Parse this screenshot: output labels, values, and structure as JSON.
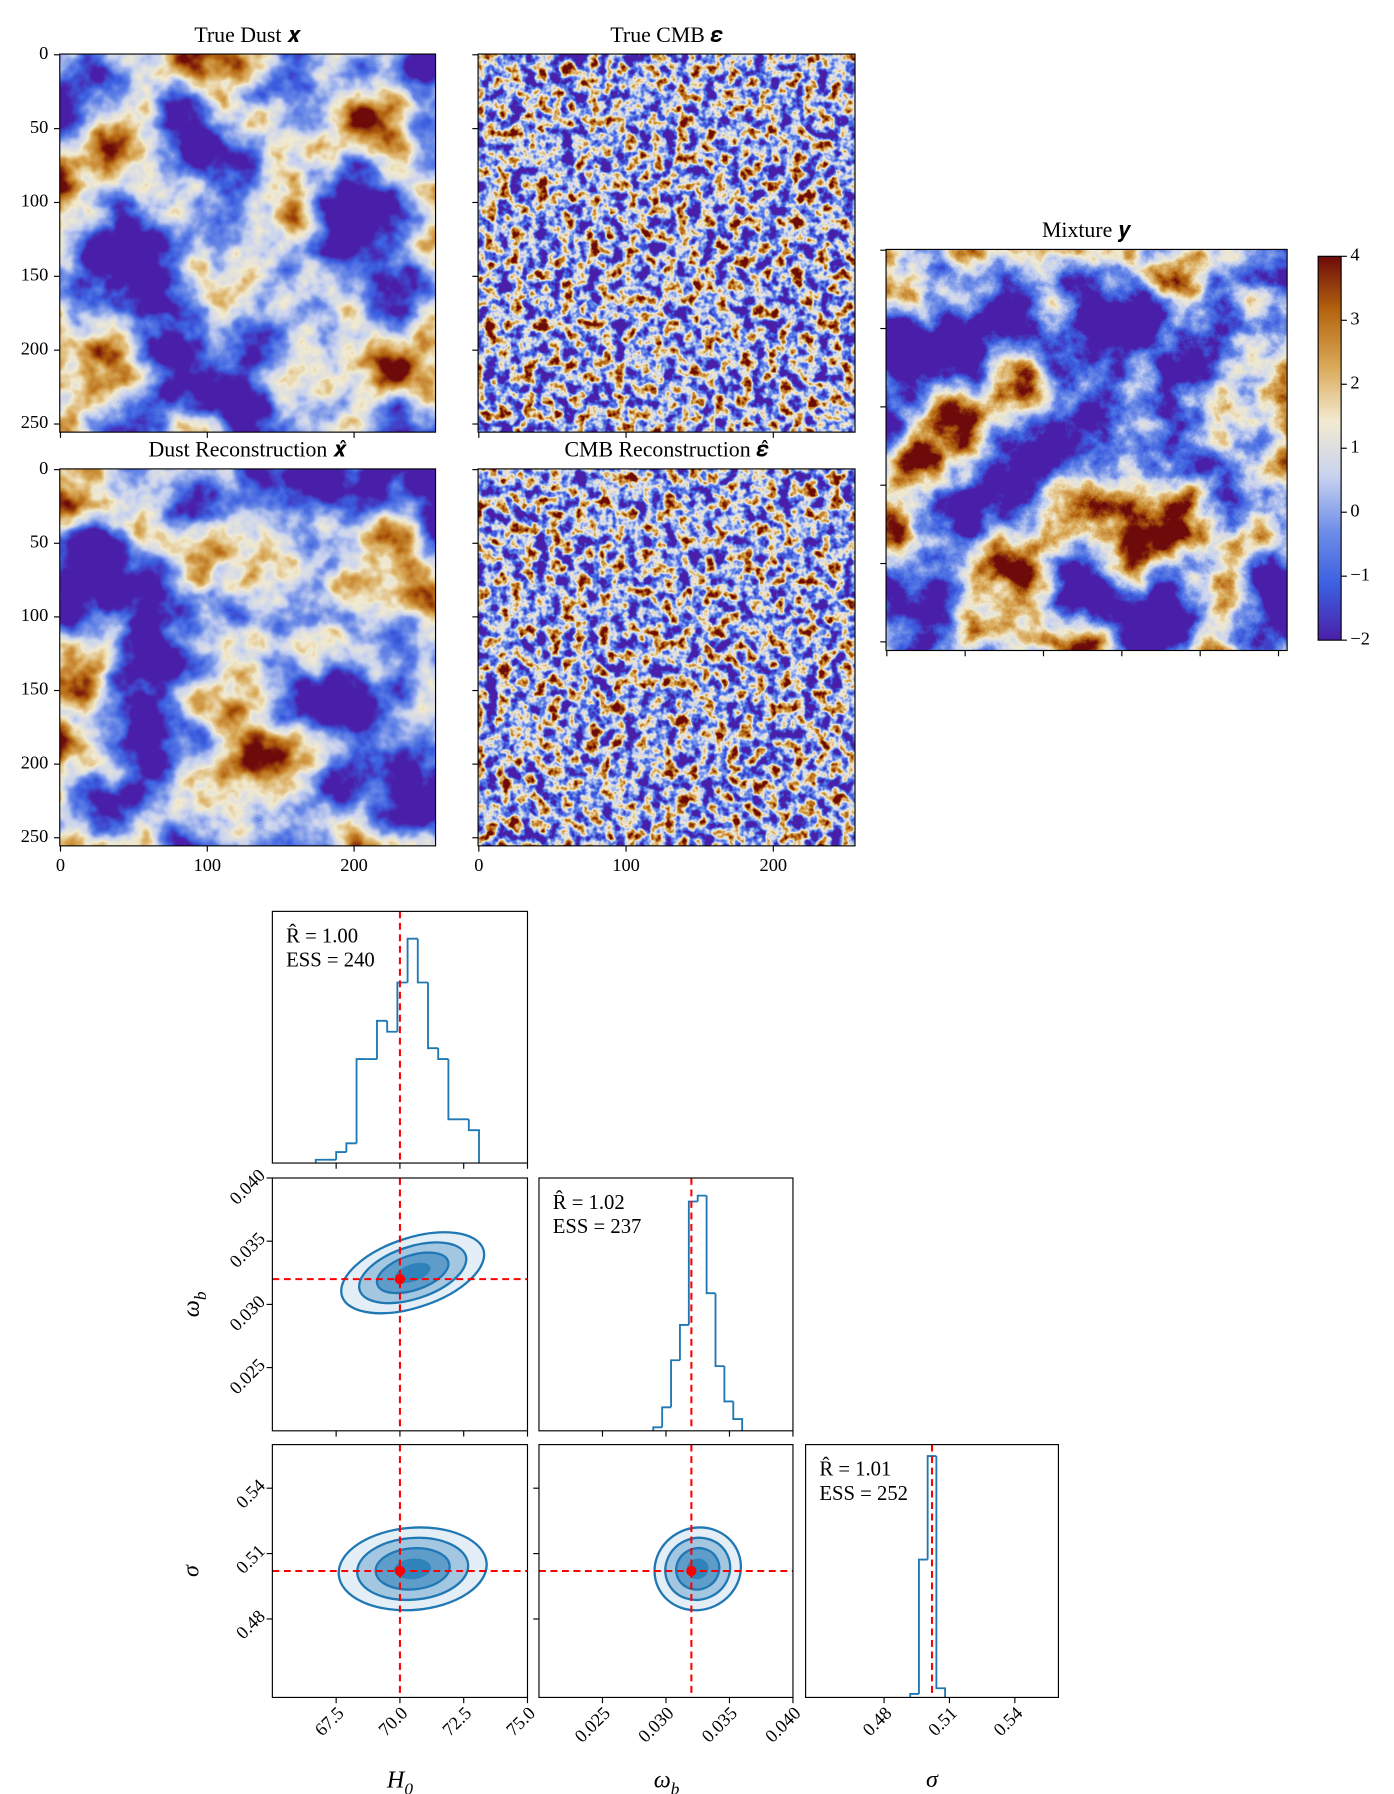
{
  "chart_data": [
    {
      "type": "heatmap",
      "title": "True Dust 𝒙",
      "texture": "dust",
      "xlim": [
        -0.5,
        255.5
      ],
      "ylim": [
        255.5,
        -0.5
      ],
      "yticks": [
        0,
        50,
        100,
        150,
        200,
        250
      ]
    },
    {
      "type": "heatmap",
      "title": "True CMB 𝜺",
      "texture": "cmb"
    },
    {
      "type": "heatmap",
      "title": "Dust Reconstruction 𝒙̂",
      "texture": "dust",
      "xlim": [
        -0.5,
        255.5
      ],
      "ylim": [
        255.5,
        -0.5
      ],
      "xticks": [
        0,
        100,
        200
      ],
      "yticks": [
        0,
        50,
        100,
        150,
        200,
        250
      ]
    },
    {
      "type": "heatmap",
      "title": "CMB Reconstruction 𝜺̂",
      "texture": "cmb",
      "xlim": [
        -0.5,
        255.5
      ],
      "xticks": [
        0,
        100,
        200
      ]
    },
    {
      "type": "heatmap",
      "title": "Mixture 𝒚",
      "texture": "mixture"
    },
    {
      "type": "colorbar",
      "ylim": [
        -2,
        4
      ],
      "yticks": [
        {
          "value": -2,
          "label": "−2"
        },
        {
          "value": -1,
          "label": "−1"
        },
        0,
        1,
        2,
        3,
        4
      ],
      "colors": [
        "#4b1fa8",
        "#3b5fe0",
        "#6f8ee8",
        "#c9d3ef",
        "#f2ead0",
        "#d9a857",
        "#b5650f",
        "#6e0a0a"
      ]
    },
    {
      "type": "histogram",
      "xlim": [
        65,
        75
      ],
      "ylim": [
        0,
        230
      ],
      "bins": [
        66.7,
        67.1,
        67.5,
        67.9,
        68.3,
        68.7,
        69.1,
        69.5,
        69.9,
        70.3,
        70.7,
        71.1,
        71.5,
        71.9,
        72.3,
        72.7,
        73.1
      ],
      "values": [
        3,
        3,
        10,
        18,
        95,
        95,
        130,
        120,
        165,
        205,
        165,
        105,
        95,
        40,
        40,
        30
      ],
      "truth": 70,
      "color": "#1f77b4",
      "truth_color": "#ff0000",
      "annotations": [
        "R̂ = 1.00",
        "ESS = 240"
      ]
    },
    {
      "type": "histogram",
      "xlim": [
        0.02,
        0.04
      ],
      "ylim": [
        0,
        215
      ],
      "bins": [
        0.029,
        0.0297,
        0.0304,
        0.0311,
        0.0318,
        0.0325,
        0.0332,
        0.0339,
        0.0346,
        0.0353,
        0.036
      ],
      "values": [
        3,
        20,
        60,
        90,
        195,
        200,
        117,
        55,
        25,
        10
      ],
      "truth": 0.032,
      "color": "#1f77b4",
      "truth_color": "#ff0000",
      "annotations": [
        "R̂ = 1.02",
        "ESS = 237"
      ]
    },
    {
      "type": "histogram",
      "xlim": [
        0.444,
        0.56
      ],
      "ylim": [
        0,
        220
      ],
      "bins": [
        0.492,
        0.496,
        0.5,
        0.504,
        0.508
      ],
      "values": [
        3,
        120,
        210,
        8
      ],
      "truth": 0.502,
      "color": "#1f77b4",
      "truth_color": "#ff0000",
      "xticks": [
        0.48,
        0.51,
        0.54
      ],
      "xlabel": "σ",
      "annotations": [
        "R̂ = 1.01",
        "ESS = 252"
      ]
    },
    {
      "type": "contour",
      "xlim": [
        65,
        75
      ],
      "ylim": [
        0.02,
        0.04
      ],
      "yticks": [
        0.025,
        {
          "value": 0.03,
          "label": "0.030"
        },
        0.035,
        {
          "value": 0.04,
          "label": "0.040"
        }
      ],
      "ylabel": "ωb",
      "mean": [
        70.5,
        0.0325
      ],
      "std": [
        1.4,
        0.0016
      ],
      "corr": 0.45,
      "levels": [
        0.5,
        1,
        1.5,
        2
      ],
      "truth": [
        70,
        0.032
      ],
      "color": "#1f77b4",
      "truth_color": "#ff0000"
    },
    {
      "type": "contour",
      "xlim": [
        65,
        75
      ],
      "ylim": [
        0.444,
        0.56
      ],
      "xticks": [
        67.5,
        {
          "value": 70,
          "label": "70.0"
        },
        72.5,
        {
          "value": 75,
          "label": "75.0"
        }
      ],
      "yticks": [
        0.48,
        0.51,
        0.54
      ],
      "xlabel": "H0",
      "ylabel": "σ",
      "mean": [
        70.5,
        0.503
      ],
      "std": [
        1.45,
        0.0095
      ],
      "corr": 0.1,
      "levels": [
        0.5,
        1,
        1.5,
        2
      ],
      "truth": [
        70,
        0.502
      ],
      "color": "#1f77b4",
      "truth_color": "#ff0000"
    },
    {
      "type": "contour",
      "xlim": [
        0.02,
        0.04
      ],
      "ylim": [
        0.444,
        0.56
      ],
      "xticks": [
        0.025,
        {
          "value": 0.03,
          "label": "0.030"
        },
        0.035,
        {
          "value": 0.04,
          "label": "0.040"
        }
      ],
      "xlabel": "ωb",
      "mean": [
        0.0325,
        0.503
      ],
      "std": [
        0.0017,
        0.0095
      ],
      "corr": 0.05,
      "levels": [
        0.5,
        1,
        1.5,
        2
      ],
      "truth": [
        0.032,
        0.502
      ],
      "color": "#1f77b4",
      "truth_color": "#ff0000"
    }
  ]
}
